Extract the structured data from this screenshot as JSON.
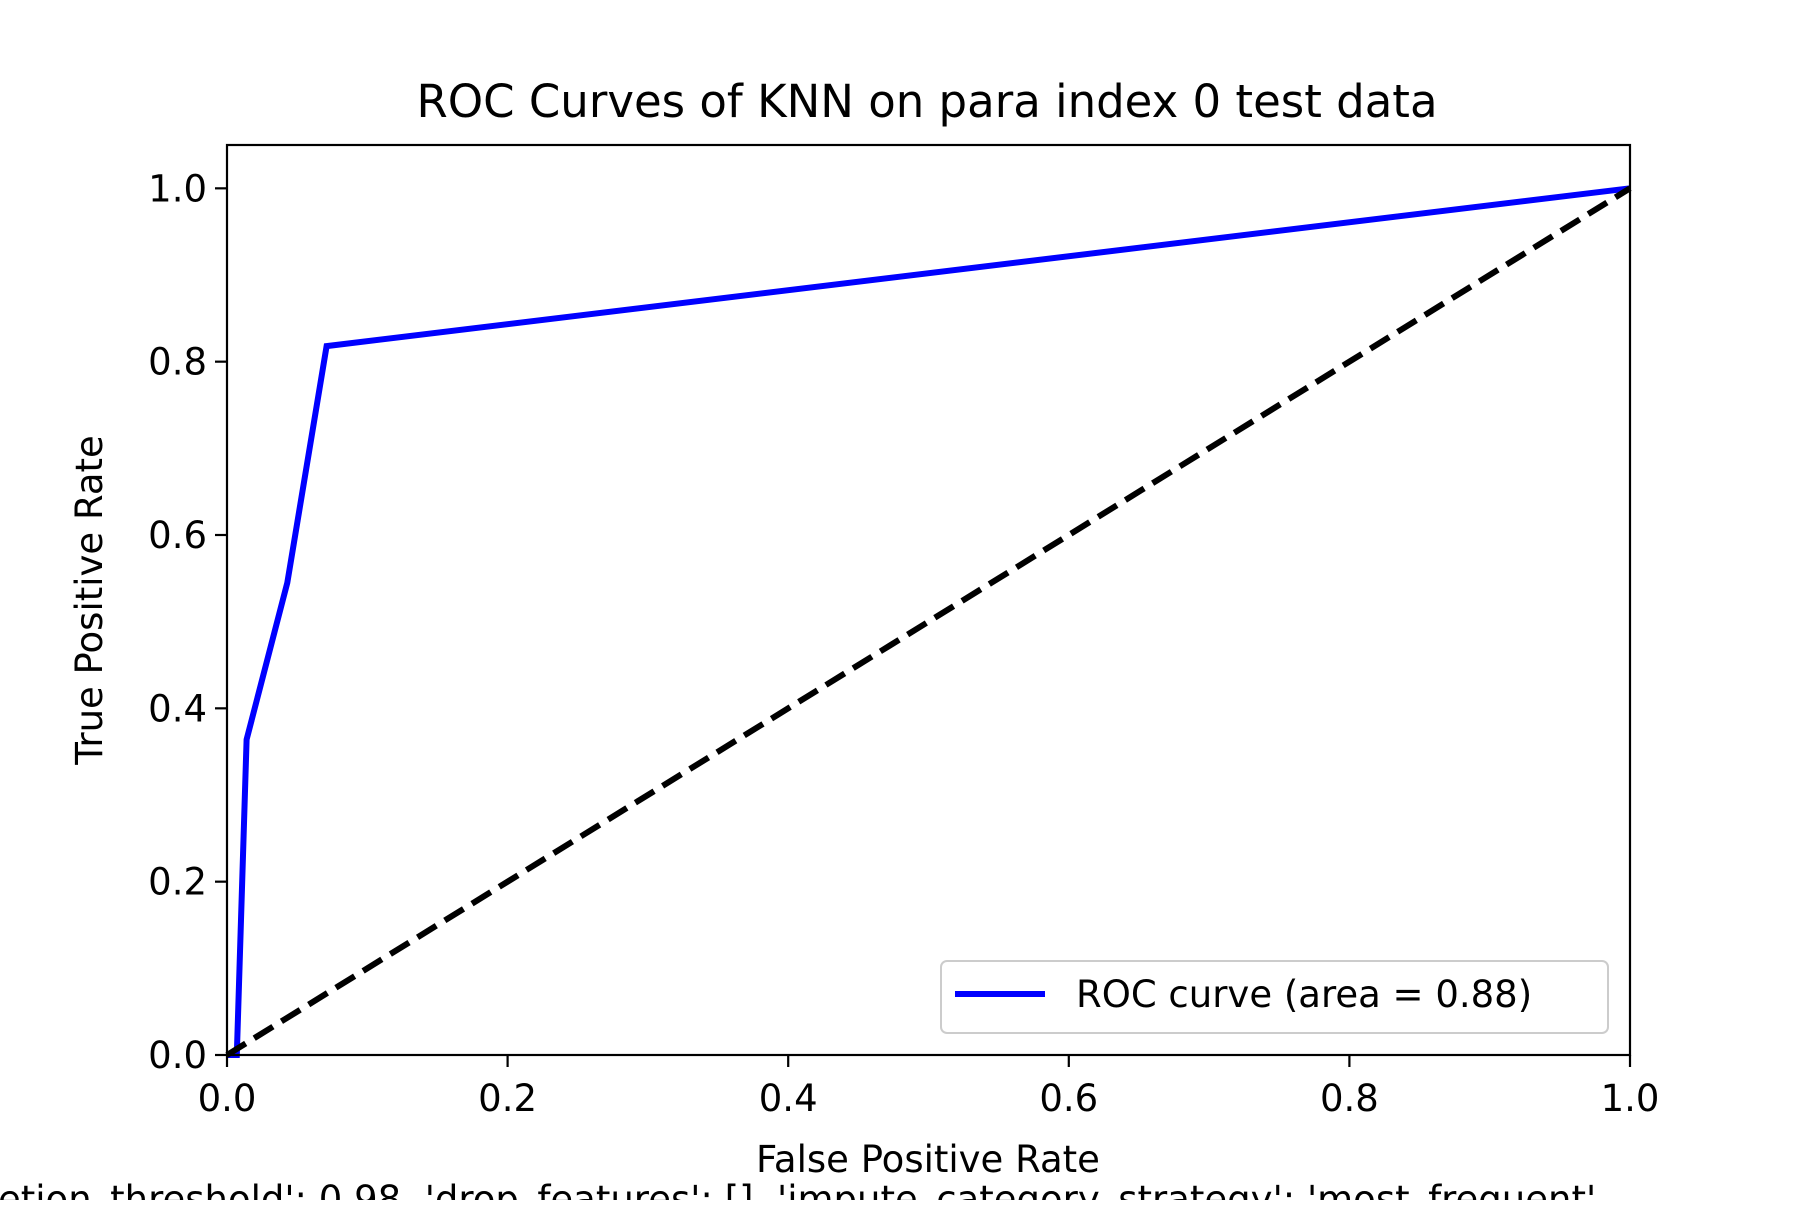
{
  "chart_data": {
    "type": "line",
    "title": "ROC Curves of KNN on para index 0 test data",
    "xlabel": "False Positive Rate",
    "ylabel": "True Positive Rate",
    "xlim": [
      0.0,
      1.0
    ],
    "ylim": [
      0.0,
      1.05
    ],
    "xticks": [
      "0.0",
      "0.2",
      "0.4",
      "0.6",
      "0.8",
      "1.0"
    ],
    "yticks": [
      "0.0",
      "0.2",
      "0.4",
      "0.6",
      "0.8",
      "1.0"
    ],
    "grid": false,
    "legend_position": "lower-right",
    "footnote": "etion_threshold': 0.98, 'drop_features': [], 'impute_category_strategy': 'most_frequent'",
    "series": [
      {
        "name": "ROC curve (area = 0.88)",
        "color": "#0000ff",
        "style": "solid",
        "x": [
          0.0,
          0.007,
          0.014,
          0.043,
          0.071,
          1.0
        ],
        "y": [
          0.0,
          0.0,
          0.364,
          0.545,
          0.818,
          1.0
        ]
      },
      {
        "name": "",
        "color": "#000000",
        "style": "dashed",
        "x": [
          0.0,
          1.0
        ],
        "y": [
          0.0,
          1.0
        ]
      }
    ]
  }
}
